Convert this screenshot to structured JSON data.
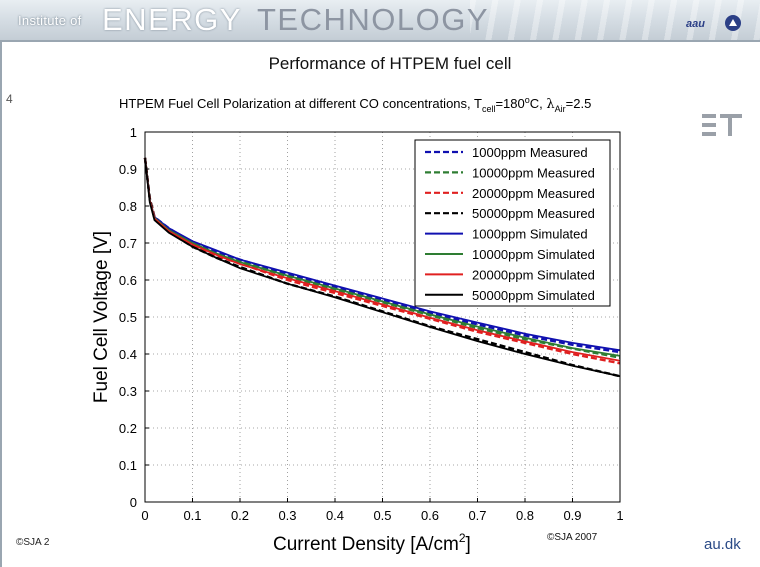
{
  "header": {
    "institute": "Institute of",
    "energy": "ENERGY",
    "technology": "TECHNOLOGY",
    "logo_text": "aau"
  },
  "slide": {
    "title": "Performance of HTPEM fuel cell",
    "number": "4"
  },
  "footer": {
    "left": "©SJA 2",
    "copyright": "©SJA 2007",
    "brand": "au.dk"
  },
  "colors": {
    "blue": "#1010b0",
    "green": "#2e7d32",
    "red": "#e02020",
    "black": "#000000"
  },
  "chart_data": {
    "type": "line",
    "title_main": "HTPEM Fuel Cell Polarization at different CO concentrations, T",
    "title_sub1": "cell",
    "title_mid": "=180",
    "title_sup": "o",
    "title_mid2": "C, ",
    "title_lambda": "λ",
    "title_sub2": "Air",
    "title_end": "=2.5",
    "xlabel": "Current Density [A/cm",
    "xlabel_sup": "2",
    "xlabel_end": "]",
    "ylabel": "Fuel Cell Voltage [V]",
    "xlim": [
      0,
      1
    ],
    "ylim": [
      0,
      1
    ],
    "xticks": [
      "0",
      "0.1",
      "0.2",
      "0.3",
      "0.4",
      "0.5",
      "0.6",
      "0.7",
      "0.8",
      "0.9",
      "1"
    ],
    "yticks": [
      "0",
      "0.1",
      "0.2",
      "0.3",
      "0.4",
      "0.5",
      "0.6",
      "0.7",
      "0.8",
      "0.9",
      "1"
    ],
    "grid": true,
    "legend_position": "top-right",
    "series": [
      {
        "name": "1000ppm Measured",
        "color": "#1010b0",
        "dash": "dashed",
        "x": [
          0,
          0.01,
          0.02,
          0.05,
          0.1,
          0.15,
          0.2,
          0.3,
          0.4,
          0.5,
          0.6,
          0.7,
          0.8,
          0.9,
          1.0
        ],
        "y": [
          0.93,
          0.82,
          0.77,
          0.74,
          0.7,
          0.675,
          0.655,
          0.615,
          0.58,
          0.545,
          0.51,
          0.48,
          0.45,
          0.425,
          0.405
        ]
      },
      {
        "name": "10000ppm Measured",
        "color": "#2e7d32",
        "dash": "dashed",
        "x": [
          0,
          0.01,
          0.02,
          0.05,
          0.1,
          0.15,
          0.2,
          0.3,
          0.4,
          0.5,
          0.6,
          0.7,
          0.8,
          0.9,
          1.0
        ],
        "y": [
          0.93,
          0.82,
          0.77,
          0.735,
          0.695,
          0.67,
          0.65,
          0.61,
          0.575,
          0.54,
          0.505,
          0.47,
          0.44,
          0.415,
          0.39
        ]
      },
      {
        "name": "20000ppm Measured",
        "color": "#e02020",
        "dash": "dashed",
        "x": [
          0,
          0.01,
          0.02,
          0.05,
          0.1,
          0.15,
          0.2,
          0.3,
          0.4,
          0.5,
          0.6,
          0.7,
          0.8,
          0.9,
          1.0
        ],
        "y": [
          0.93,
          0.82,
          0.77,
          0.735,
          0.695,
          0.665,
          0.645,
          0.6,
          0.565,
          0.53,
          0.495,
          0.46,
          0.43,
          0.4,
          0.375
        ]
      },
      {
        "name": "50000ppm Measured",
        "color": "#000000",
        "dash": "dashed",
        "x": [
          0,
          0.01,
          0.02,
          0.05,
          0.1,
          0.15,
          0.2,
          0.3,
          0.4,
          0.5,
          0.6,
          0.7,
          0.8,
          0.9,
          1.0
        ],
        "y": [
          0.93,
          0.82,
          0.765,
          0.73,
          0.69,
          0.66,
          0.635,
          0.59,
          0.555,
          0.515,
          0.475,
          0.44,
          0.405,
          0.37,
          0.34
        ]
      },
      {
        "name": "1000ppm Simulated",
        "color": "#1010b0",
        "dash": "solid",
        "x": [
          0,
          0.01,
          0.02,
          0.05,
          0.1,
          0.15,
          0.2,
          0.3,
          0.4,
          0.5,
          0.6,
          0.7,
          0.8,
          0.9,
          1.0
        ],
        "y": [
          0.93,
          0.815,
          0.77,
          0.74,
          0.705,
          0.68,
          0.655,
          0.62,
          0.585,
          0.55,
          0.515,
          0.485,
          0.455,
          0.43,
          0.41
        ]
      },
      {
        "name": "10000ppm Simulated",
        "color": "#2e7d32",
        "dash": "solid",
        "x": [
          0,
          0.01,
          0.02,
          0.05,
          0.1,
          0.15,
          0.2,
          0.3,
          0.4,
          0.5,
          0.6,
          0.7,
          0.8,
          0.9,
          1.0
        ],
        "y": [
          0.93,
          0.815,
          0.768,
          0.735,
          0.7,
          0.672,
          0.648,
          0.612,
          0.577,
          0.542,
          0.507,
          0.474,
          0.444,
          0.416,
          0.395
        ]
      },
      {
        "name": "20000ppm Simulated",
        "color": "#e02020",
        "dash": "solid",
        "x": [
          0,
          0.01,
          0.02,
          0.05,
          0.1,
          0.15,
          0.2,
          0.3,
          0.4,
          0.5,
          0.6,
          0.7,
          0.8,
          0.9,
          1.0
        ],
        "y": [
          0.93,
          0.815,
          0.766,
          0.732,
          0.696,
          0.668,
          0.643,
          0.605,
          0.57,
          0.534,
          0.498,
          0.464,
          0.434,
          0.405,
          0.382
        ]
      },
      {
        "name": "50000ppm Simulated",
        "color": "#000000",
        "dash": "solid",
        "x": [
          0,
          0.01,
          0.02,
          0.05,
          0.1,
          0.15,
          0.2,
          0.3,
          0.4,
          0.5,
          0.6,
          0.7,
          0.8,
          0.9,
          1.0
        ],
        "y": [
          0.93,
          0.81,
          0.762,
          0.728,
          0.69,
          0.66,
          0.632,
          0.59,
          0.553,
          0.513,
          0.473,
          0.435,
          0.4,
          0.368,
          0.34
        ]
      }
    ]
  }
}
